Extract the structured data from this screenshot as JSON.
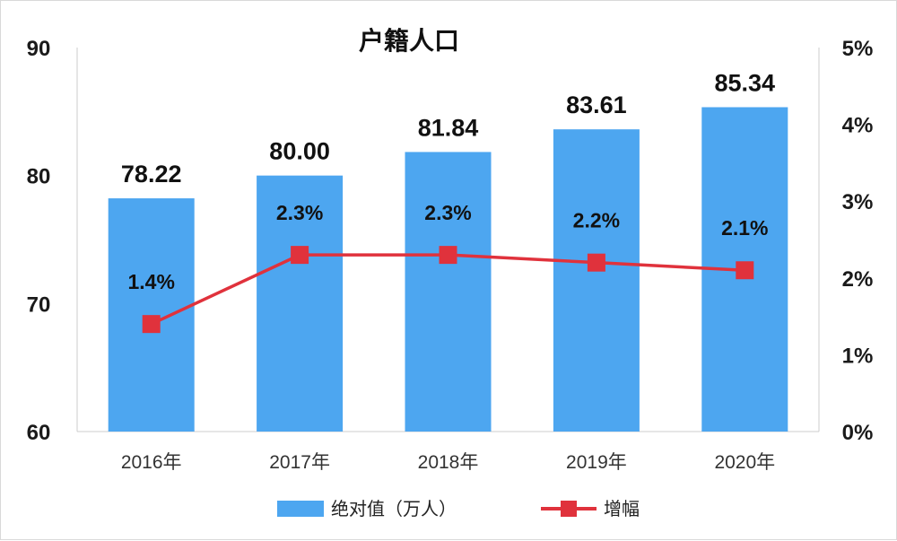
{
  "chart_data": {
    "type": "bar+line",
    "title": "户籍人口",
    "categories": [
      "2016年",
      "2017年",
      "2018年",
      "2019年",
      "2020年"
    ],
    "series": [
      {
        "name": "绝对值（万人）",
        "type": "bar",
        "axis": "left",
        "values": [
          78.22,
          80.0,
          81.84,
          83.61,
          85.34
        ],
        "labels": [
          "78.22",
          "80.00",
          "81.84",
          "83.61",
          "85.34"
        ],
        "color": "#4da6f0"
      },
      {
        "name": "增幅",
        "type": "line",
        "axis": "right",
        "values": [
          1.4,
          2.3,
          2.3,
          2.2,
          2.1
        ],
        "labels": [
          "1.4%",
          "2.3%",
          "2.3%",
          "2.2%",
          "2.1%"
        ],
        "color": "#e0323c"
      }
    ],
    "y_left": {
      "min": 60,
      "max": 90,
      "ticks": [
        "60",
        "70",
        "80",
        "90"
      ]
    },
    "y_right": {
      "min": 0,
      "max": 5,
      "ticks": [
        "0%",
        "1%",
        "2%",
        "3%",
        "4%",
        "5%"
      ]
    },
    "grid": false,
    "legend_position": "bottom"
  }
}
